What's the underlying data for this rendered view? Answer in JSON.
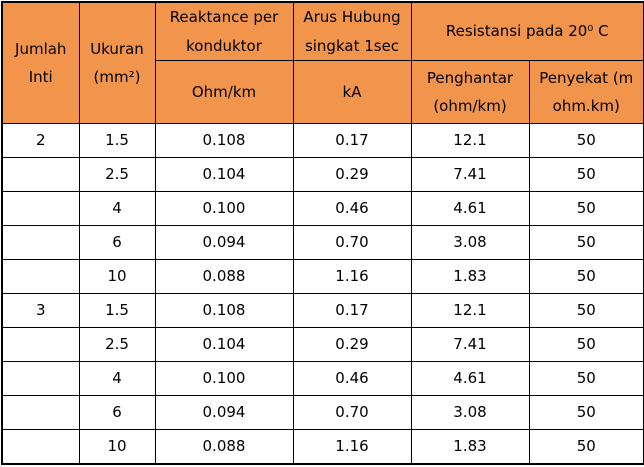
{
  "colors": {
    "header_bg": "#F2954C",
    "border": "#000000",
    "text": "#000000",
    "page_bg": "#FFFFFF"
  },
  "table": {
    "header": {
      "jumlah_inti": "Jumlah Inti",
      "ukuran": "Ukuran (mm²)",
      "reaktance": "Reaktance per konduktor",
      "reaktance_unit": "Ohm/km",
      "arus": "Arus Hubung singkat 1sec",
      "arus_unit": "kA",
      "resistansi": "Resistansi pada 20⁰ C",
      "penghantar": "Penghantar (ohm/km)",
      "penyekat": "Penyekat (m ohm.km)"
    },
    "rows": [
      [
        "2",
        "1.5",
        "0.108",
        "0.17",
        "12.1",
        "50"
      ],
      [
        "",
        "2.5",
        "0.104",
        "0.29",
        "7.41",
        "50"
      ],
      [
        "",
        "4",
        "0.100",
        "0.46",
        "4.61",
        "50"
      ],
      [
        "",
        "6",
        "0.094",
        "0.70",
        "3.08",
        "50"
      ],
      [
        "",
        "10",
        "0.088",
        "1.16",
        "1.83",
        "50"
      ],
      [
        "3",
        "1.5",
        "0.108",
        "0.17",
        "12.1",
        "50"
      ],
      [
        "",
        "2.5",
        "0.104",
        "0.29",
        "7.41",
        "50"
      ],
      [
        "",
        "4",
        "0.100",
        "0.46",
        "4.61",
        "50"
      ],
      [
        "",
        "6",
        "0.094",
        "0.70",
        "3.08",
        "50"
      ],
      [
        "",
        "10",
        "0.088",
        "1.16",
        "1.83",
        "50"
      ]
    ]
  }
}
